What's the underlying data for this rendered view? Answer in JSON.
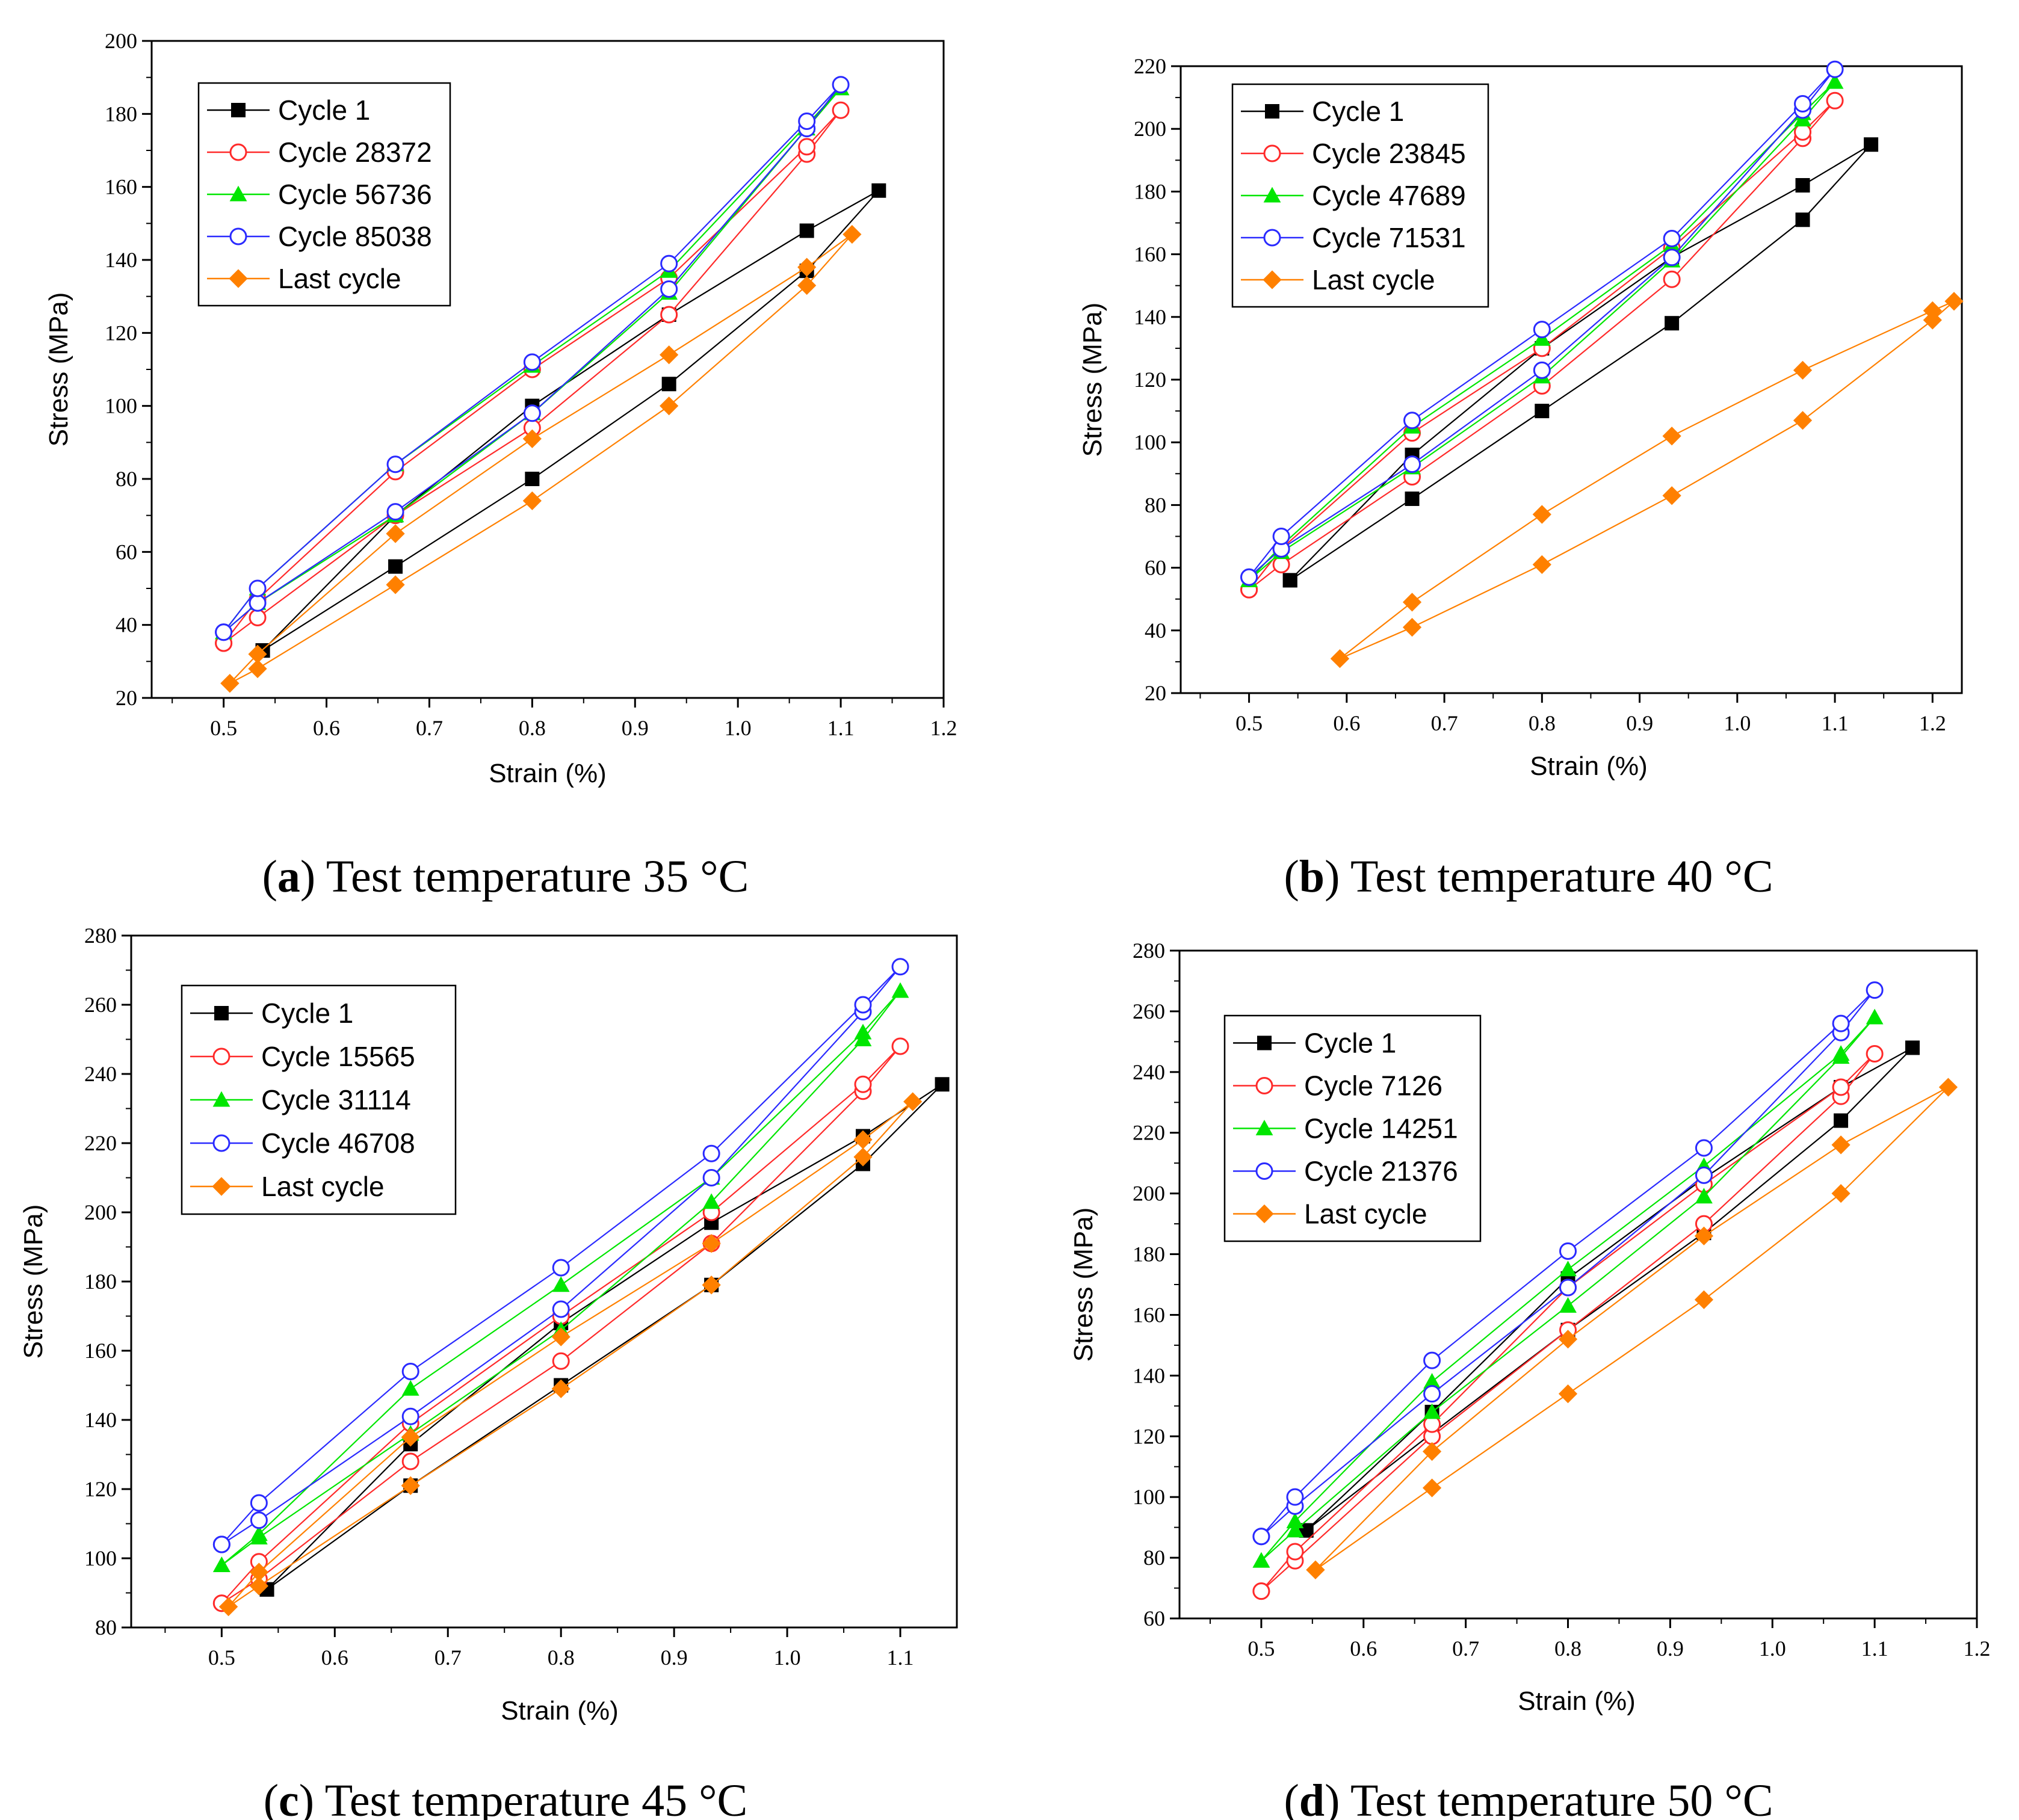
{
  "figure": {
    "colors": {
      "cycle1": "#000000",
      "cycle2": "#ff2a2a",
      "cycle3": "#00e600",
      "cycle4": "#2a2aff",
      "last": "#ff8000"
    }
  },
  "chart_data": [
    {
      "id": "a",
      "type": "line",
      "caption_letter": "a",
      "caption_text": "Test temperature 35 °C",
      "xlabel": "Strain (%)",
      "ylabel": "Stress (MPa)",
      "xlim": [
        0.43,
        1.2
      ],
      "ylim": [
        20,
        200
      ],
      "xticks": [
        0.5,
        0.6,
        0.7,
        0.8,
        0.9,
        1.0,
        1.1,
        1.2
      ],
      "xtick_labels": [
        "0.5",
        "0.6",
        "0.7",
        "0.8",
        "0.9",
        "1.0",
        "1.1",
        "1.2"
      ],
      "yticks": [
        20,
        40,
        60,
        80,
        100,
        120,
        140,
        160,
        180,
        200
      ],
      "ytick_labels": [
        "20",
        "40",
        "60",
        "80",
        "100",
        "120",
        "140",
        "160",
        "180",
        "200"
      ],
      "legend_position": "top-left",
      "series": [
        {
          "name": "Cycle 1",
          "color": "#000000",
          "marker": "square",
          "x": [
            0.538,
            0.667,
            0.8,
            0.933,
            1.067,
            1.137,
            1.067,
            0.933,
            0.8,
            0.667,
            0.538
          ],
          "y": [
            33,
            56,
            80,
            106,
            137,
            159,
            148,
            125,
            100,
            70,
            33
          ]
        },
        {
          "name": "Cycle 28372",
          "color": "#ff2a2a",
          "marker": "circle-open",
          "x": [
            0.5,
            0.533,
            0.667,
            0.8,
            0.933,
            1.067,
            1.1,
            1.067,
            0.933,
            0.8,
            0.667,
            0.533,
            0.5
          ],
          "y": [
            35,
            42,
            70,
            94,
            125,
            169,
            181,
            171,
            135,
            110,
            82,
            47,
            35
          ]
        },
        {
          "name": "Cycle 56736",
          "color": "#00e600",
          "marker": "triangle",
          "x": [
            0.5,
            0.533,
            0.667,
            0.8,
            0.933,
            1.067,
            1.1,
            1.067,
            0.933,
            0.8,
            0.667,
            0.533,
            0.5
          ],
          "y": [
            38,
            46,
            70,
            98,
            131,
            176,
            187,
            177,
            137,
            111,
            84,
            50,
            38
          ]
        },
        {
          "name": "Cycle 85038",
          "color": "#2a2aff",
          "marker": "circle-open",
          "x": [
            0.5,
            0.533,
            0.667,
            0.8,
            0.933,
            1.067,
            1.1,
            1.067,
            0.933,
            0.8,
            0.667,
            0.533,
            0.5
          ],
          "y": [
            38,
            46,
            71,
            98,
            132,
            176,
            188,
            178,
            139,
            112,
            84,
            50,
            38
          ]
        },
        {
          "name": "Last cycle",
          "color": "#ff8000",
          "marker": "diamond",
          "x": [
            0.506,
            0.533,
            0.667,
            0.8,
            0.933,
            1.067,
            1.111,
            1.067,
            0.933,
            0.8,
            0.667,
            0.533,
            0.506
          ],
          "y": [
            24,
            28,
            51,
            74,
            100,
            133,
            147,
            138,
            114,
            91,
            65,
            32,
            24
          ]
        }
      ]
    },
    {
      "id": "b",
      "type": "line",
      "caption_letter": "b",
      "caption_text": "Test temperature 40 °C",
      "xlabel": "Strain (%)",
      "ylabel": "Stress (MPa)",
      "xlim": [
        0.43,
        1.23
      ],
      "ylim": [
        20,
        220
      ],
      "xticks": [
        0.5,
        0.6,
        0.7,
        0.8,
        0.9,
        1.0,
        1.1,
        1.2
      ],
      "xtick_labels": [
        "0.5",
        "0.6",
        "0.7",
        "0.8",
        "0.9",
        "1.0",
        "1.1",
        "1.2"
      ],
      "yticks": [
        20,
        40,
        60,
        80,
        100,
        120,
        140,
        160,
        180,
        200,
        220
      ],
      "ytick_labels": [
        "20",
        "40",
        "60",
        "80",
        "100",
        "120",
        "140",
        "160",
        "180",
        "200",
        "220"
      ],
      "legend_position": "top-left",
      "series": [
        {
          "name": "Cycle 1",
          "color": "#000000",
          "marker": "square",
          "x": [
            0.542,
            0.667,
            0.8,
            0.933,
            1.067,
            1.137,
            1.067,
            0.933,
            0.8,
            0.667,
            0.542
          ],
          "y": [
            56,
            82,
            110,
            138,
            171,
            195,
            182,
            159,
            130,
            96,
            56
          ]
        },
        {
          "name": "Cycle 23845",
          "color": "#ff2a2a",
          "marker": "circle-open",
          "x": [
            0.5,
            0.533,
            0.667,
            0.8,
            0.933,
            1.067,
            1.1,
            1.067,
            0.933,
            0.8,
            0.667,
            0.533,
            0.5
          ],
          "y": [
            53,
            61,
            89,
            118,
            152,
            197,
            209,
            199,
            162,
            130,
            103,
            66,
            53
          ]
        },
        {
          "name": "Cycle 47689",
          "color": "#00e600",
          "marker": "triangle",
          "x": [
            0.5,
            0.533,
            0.667,
            0.8,
            0.933,
            1.067,
            1.1,
            1.067,
            0.933,
            0.8,
            0.667,
            0.533,
            0.5
          ],
          "y": [
            56,
            65,
            92,
            121,
            158,
            203,
            215,
            205,
            163,
            133,
            105,
            67,
            56
          ]
        },
        {
          "name": "Cycle 71531",
          "color": "#2a2aff",
          "marker": "circle-open",
          "x": [
            0.5,
            0.533,
            0.667,
            0.8,
            0.933,
            1.067,
            1.1,
            1.067,
            0.933,
            0.8,
            0.667,
            0.533,
            0.5
          ],
          "y": [
            57,
            66,
            93,
            123,
            159,
            206,
            219,
            208,
            165,
            136,
            107,
            70,
            57
          ]
        },
        {
          "name": "Last cycle",
          "color": "#ff8000",
          "marker": "diamond",
          "x": [
            0.593,
            0.667,
            0.8,
            0.933,
            1.067,
            1.2,
            1.222,
            1.2,
            1.067,
            0.933,
            0.8,
            0.667,
            0.593
          ],
          "y": [
            31,
            41,
            61,
            83,
            107,
            139,
            145,
            142,
            123,
            102,
            77,
            49,
            31
          ]
        }
      ]
    },
    {
      "id": "c",
      "type": "line",
      "caption_letter": "c",
      "caption_text": "Test temperature 45 °C",
      "xlabel": "Strain (%)",
      "ylabel": "Stress (MPa)",
      "xlim": [
        0.42,
        1.15
      ],
      "ylim": [
        80,
        280
      ],
      "xticks": [
        0.5,
        0.6,
        0.7,
        0.8,
        0.9,
        1.0,
        1.1
      ],
      "xtick_labels": [
        "0.5",
        "0.6",
        "0.7",
        "0.8",
        "0.9",
        "1.0",
        "1.1"
      ],
      "yticks": [
        80,
        100,
        120,
        140,
        160,
        180,
        200,
        220,
        240,
        260,
        280
      ],
      "ytick_labels": [
        "80",
        "100",
        "120",
        "140",
        "160",
        "180",
        "200",
        "220",
        "240",
        "260",
        "280"
      ],
      "legend_position": "top-left",
      "series": [
        {
          "name": "Cycle 1",
          "color": "#000000",
          "marker": "square",
          "x": [
            0.54,
            0.667,
            0.8,
            0.933,
            1.067,
            1.137,
            1.067,
            0.933,
            0.8,
            0.667,
            0.54
          ],
          "y": [
            91,
            121,
            150,
            179,
            214,
            237,
            222,
            197,
            168,
            133,
            91
          ]
        },
        {
          "name": "Cycle 15565",
          "color": "#ff2a2a",
          "marker": "circle-open",
          "x": [
            0.5,
            0.533,
            0.667,
            0.8,
            0.933,
            1.067,
            1.1,
            1.067,
            0.933,
            0.8,
            0.667,
            0.533,
            0.5
          ],
          "y": [
            87,
            94,
            128,
            157,
            191,
            235,
            248,
            237,
            200,
            170,
            139,
            99,
            87
          ]
        },
        {
          "name": "Cycle 31114",
          "color": "#00e600",
          "marker": "triangle",
          "x": [
            0.5,
            0.533,
            0.667,
            0.8,
            0.933,
            1.067,
            1.1,
            1.067,
            0.933,
            0.8,
            0.667,
            0.533,
            0.5
          ],
          "y": [
            98,
            106,
            136,
            166,
            203,
            250,
            264,
            252,
            210,
            179,
            149,
            107,
            98
          ]
        },
        {
          "name": "Cycle 46708",
          "color": "#2a2aff",
          "marker": "circle-open",
          "x": [
            0.5,
            0.533,
            0.667,
            0.8,
            0.933,
            1.067,
            1.1,
            1.067,
            0.933,
            0.8,
            0.667,
            0.533,
            0.5
          ],
          "y": [
            104,
            111,
            141,
            172,
            210,
            258,
            271,
            260,
            217,
            184,
            154,
            116,
            104
          ]
        },
        {
          "name": "Last cycle",
          "color": "#ff8000",
          "marker": "diamond",
          "x": [
            0.506,
            0.533,
            0.667,
            0.8,
            0.933,
            1.067,
            1.111,
            1.067,
            0.933,
            0.8,
            0.667,
            0.533,
            0.506
          ],
          "y": [
            86,
            92,
            121,
            149,
            179,
            216,
            232,
            221,
            191,
            164,
            135,
            96,
            86
          ]
        }
      ]
    },
    {
      "id": "d",
      "type": "line",
      "caption_letter": "d",
      "caption_text": "Test temperature 50 °C",
      "xlabel": "Strain (%)",
      "ylabel": "Stress (MPa)",
      "xlim": [
        0.42,
        1.2
      ],
      "ylim": [
        60,
        280
      ],
      "xticks": [
        0.5,
        0.6,
        0.7,
        0.8,
        0.9,
        1.0,
        1.1,
        1.2
      ],
      "xtick_labels": [
        "0.5",
        "0.6",
        "0.7",
        "0.8",
        "0.9",
        "1.0",
        "1.1",
        "1.2"
      ],
      "yticks": [
        60,
        80,
        100,
        120,
        140,
        160,
        180,
        200,
        220,
        240,
        260,
        280
      ],
      "ytick_labels": [
        "60",
        "80",
        "100",
        "120",
        "140",
        "160",
        "180",
        "200",
        "220",
        "240",
        "260",
        "280"
      ],
      "legend_position": "top-left",
      "series": [
        {
          "name": "Cycle 1",
          "color": "#000000",
          "marker": "square",
          "x": [
            0.544,
            0.667,
            0.8,
            0.933,
            1.067,
            1.137,
            1.067,
            0.933,
            0.8,
            0.667,
            0.544
          ],
          "y": [
            89,
            121,
            155,
            187,
            224,
            248,
            235,
            205,
            172,
            128,
            89
          ]
        },
        {
          "name": "Cycle 7126",
          "color": "#ff2a2a",
          "marker": "circle-open",
          "x": [
            0.5,
            0.533,
            0.667,
            0.8,
            0.933,
            1.067,
            1.1,
            1.067,
            0.933,
            0.8,
            0.667,
            0.533,
            0.5
          ],
          "y": [
            69,
            79,
            120,
            155,
            190,
            232,
            246,
            235,
            203,
            169,
            124,
            82,
            69
          ]
        },
        {
          "name": "Cycle 14251",
          "color": "#00e600",
          "marker": "triangle",
          "x": [
            0.5,
            0.533,
            0.667,
            0.8,
            0.933,
            1.067,
            1.1,
            1.067,
            0.933,
            0.8,
            0.667,
            0.533,
            0.5
          ],
          "y": [
            79,
            89,
            128,
            163,
            199,
            245,
            258,
            246,
            209,
            175,
            138,
            92,
            79
          ]
        },
        {
          "name": "Cycle 21376",
          "color": "#2a2aff",
          "marker": "circle-open",
          "x": [
            0.5,
            0.533,
            0.667,
            0.8,
            0.933,
            1.067,
            1.1,
            1.067,
            0.933,
            0.8,
            0.667,
            0.533,
            0.5
          ],
          "y": [
            87,
            97,
            134,
            169,
            206,
            253,
            267,
            256,
            215,
            181,
            145,
            100,
            87
          ]
        },
        {
          "name": "Last cycle",
          "color": "#ff8000",
          "marker": "diamond",
          "x": [
            0.553,
            0.667,
            0.8,
            0.933,
            1.067,
            1.172,
            1.067,
            0.933,
            0.8,
            0.667,
            0.553
          ],
          "y": [
            76,
            103,
            134,
            165,
            200,
            235,
            216,
            186,
            152,
            115,
            76
          ]
        }
      ]
    }
  ]
}
